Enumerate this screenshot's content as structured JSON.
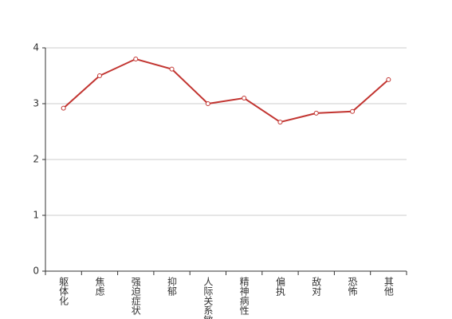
{
  "chart_data": {
    "type": "line",
    "categories": [
      "躯体化",
      "焦虑",
      "强迫症状",
      "抑郁",
      "人际关系敏感",
      "精神病性",
      "偏执",
      "敌对",
      "恐怖",
      "其他"
    ],
    "values": [
      2.92,
      3.5,
      3.8,
      3.62,
      3.0,
      3.1,
      2.67,
      2.83,
      2.86,
      3.43
    ],
    "color": "#c23531",
    "ylim": [
      0,
      4
    ],
    "yticks": [
      0,
      1,
      2,
      3,
      4
    ],
    "grid": true
  }
}
